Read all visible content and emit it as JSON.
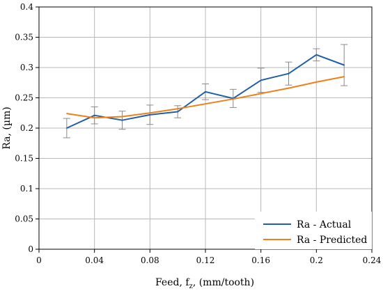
{
  "chart_data": {
    "type": "line",
    "xlabel": "Feed, f",
    "xlabel_sub": "z",
    "xlabel_suffix": ", (mm/tooth)",
    "ylabel": "Ra, (µm)",
    "xlim": [
      0,
      0.24
    ],
    "ylim": [
      0,
      0.4
    ],
    "x_ticks": [
      "0",
      "0.04",
      "0.08",
      "0.12",
      "0.16",
      "0.2",
      "0.24"
    ],
    "y_ticks": [
      "0",
      "0.05",
      "0.1",
      "0.15",
      "0.2",
      "0.25",
      "0.3",
      "0.35",
      "0.4"
    ],
    "grid": true,
    "legend_position": "bottom-right",
    "x": [
      0.02,
      0.04,
      0.06,
      0.08,
      0.1,
      0.12,
      0.14,
      0.16,
      0.18,
      0.2,
      0.22
    ],
    "series": [
      {
        "name": "Ra - Actual",
        "color": "#1f5fa8",
        "values": [
          0.2,
          0.221,
          0.213,
          0.222,
          0.227,
          0.26,
          0.249,
          0.279,
          0.29,
          0.321,
          0.304
        ],
        "error_low": [
          0.184,
          0.207,
          0.198,
          0.206,
          0.217,
          0.247,
          0.234,
          0.259,
          0.271,
          0.311,
          0.27
        ],
        "error_high": [
          0.216,
          0.235,
          0.228,
          0.238,
          0.237,
          0.273,
          0.264,
          0.299,
          0.309,
          0.331,
          0.338
        ]
      },
      {
        "name": "Ra - Predicted",
        "color": "#f07f17",
        "values": [
          0.224,
          0.217,
          0.219,
          0.225,
          0.232,
          0.24,
          0.248,
          0.257,
          0.266,
          0.276,
          0.285
        ]
      }
    ]
  }
}
